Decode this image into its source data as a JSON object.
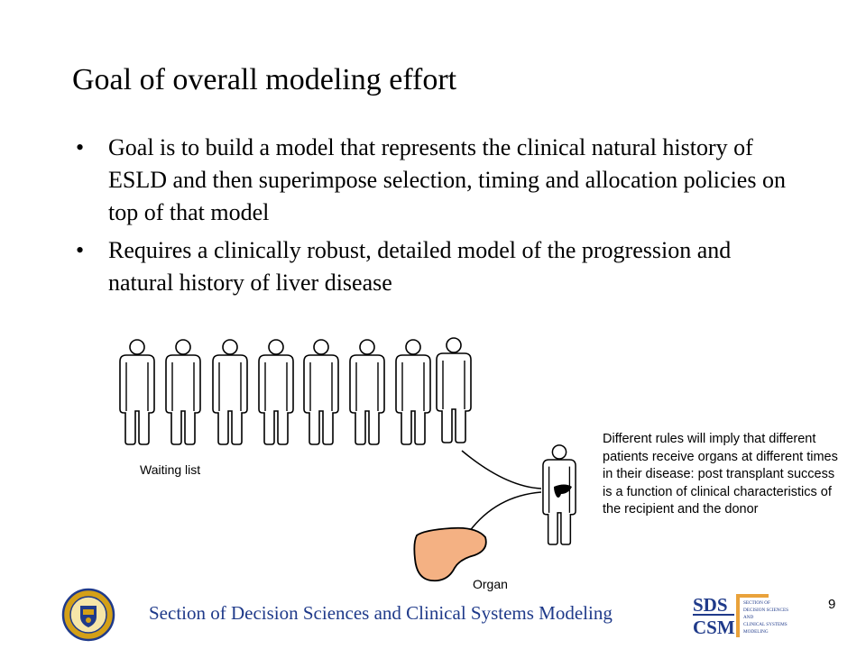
{
  "title": "Goal of overall modeling effort",
  "bullets": [
    {
      "marker": "•",
      "text": "Goal is to build a model that represents the clinical natural history of ESLD and then superimpose selection, timing and allocation policies on top of that model"
    },
    {
      "marker": "•",
      "text": "Requires a clinically robust, detailed model of the progression and natural history of liver disease"
    }
  ],
  "figure": {
    "waiting_list_label": "Waiting list",
    "organ_label": "Organ",
    "note": "Different rules will imply that different patients receive organs at different times in their disease: post transplant success is a function of clinical characteristics of the recipient and the donor",
    "icons": [
      "person-icon",
      "liver-icon",
      "arrow-icon"
    ],
    "colors": {
      "liver": "#f4b183",
      "liver_outline": "#000000"
    }
  },
  "footer": {
    "text": "Section of Decision Sciences and Clinical Systems Modeling",
    "page_number": "9",
    "seal": "university-seal",
    "logo": {
      "line1": "SDS",
      "line2": "CSM",
      "small": [
        "SECTION OF",
        "DECISION SCIENCES",
        "AND",
        "CLINICAL SYSTEMS",
        "MODELING"
      ]
    },
    "colors": {
      "text": "#1f3a8a",
      "logo_accent": "#e9a23b",
      "seal_gold": "#d4a017",
      "seal_blue": "#1f3a8a"
    }
  }
}
